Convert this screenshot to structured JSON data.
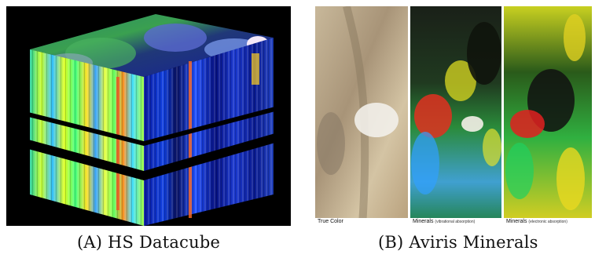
{
  "panel_a": {
    "caption_letter": "(A)",
    "caption_text": "HS Datacube"
  },
  "panel_b": {
    "caption_letter": "(B)",
    "caption_text": "Aviris Minerals",
    "strips": [
      {
        "label": "True Color",
        "note": ""
      },
      {
        "label": "Minerals",
        "note": "(vibrational absorption)"
      },
      {
        "label": "Minerals",
        "note": "(electronic absorption)"
      }
    ]
  }
}
